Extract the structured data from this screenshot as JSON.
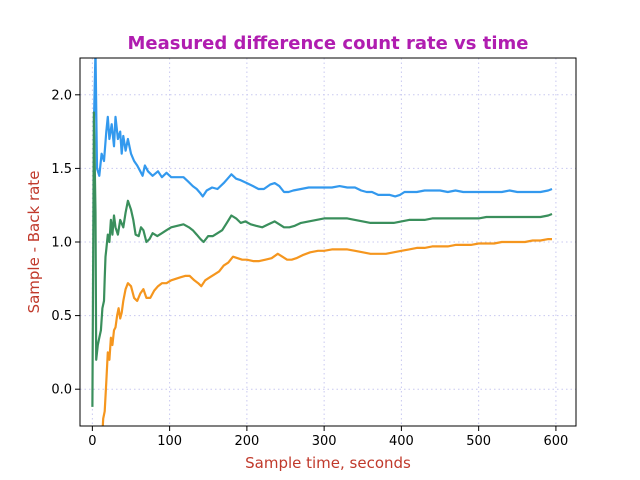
{
  "chart_data": {
    "type": "line",
    "title": "Measured difference count rate vs time",
    "xlabel": "Sample time, seconds",
    "ylabel": "Sample - Back rate",
    "xlim": [
      -16,
      626
    ],
    "ylim": [
      -0.25,
      2.25
    ],
    "xticks": [
      0,
      100,
      200,
      300,
      400,
      500,
      600
    ],
    "yticks": [
      0.0,
      0.5,
      1.0,
      1.5,
      2.0
    ],
    "xtick_labels": [
      "0",
      "100",
      "200",
      "300",
      "400",
      "500",
      "600"
    ],
    "ytick_labels": [
      "0.0",
      "0.5",
      "1.0",
      "1.5",
      "2.0"
    ],
    "grid": true,
    "legend": "none",
    "colors": {
      "title": "#b01db0",
      "axis_label": "#c0392b",
      "grid": "#c8c8f0"
    },
    "series": [
      {
        "color": "#3399ee",
        "points": [
          [
            2,
            1.8
          ],
          [
            4,
            2.3
          ],
          [
            6,
            1.5
          ],
          [
            9,
            1.45
          ],
          [
            12,
            1.6
          ],
          [
            15,
            1.55
          ],
          [
            18,
            1.75
          ],
          [
            20,
            1.85
          ],
          [
            22,
            1.7
          ],
          [
            25,
            1.8
          ],
          [
            28,
            1.65
          ],
          [
            30,
            1.85
          ],
          [
            33,
            1.7
          ],
          [
            36,
            1.75
          ],
          [
            38,
            1.6
          ],
          [
            40,
            1.72
          ],
          [
            43,
            1.62
          ],
          [
            46,
            1.7
          ],
          [
            50,
            1.6
          ],
          [
            54,
            1.55
          ],
          [
            58,
            1.52
          ],
          [
            62,
            1.48
          ],
          [
            65,
            1.45
          ],
          [
            68,
            1.52
          ],
          [
            72,
            1.48
          ],
          [
            78,
            1.45
          ],
          [
            85,
            1.48
          ],
          [
            90,
            1.44
          ],
          [
            96,
            1.47
          ],
          [
            102,
            1.44
          ],
          [
            110,
            1.44
          ],
          [
            118,
            1.44
          ],
          [
            124,
            1.41
          ],
          [
            130,
            1.38
          ],
          [
            135,
            1.36
          ],
          [
            140,
            1.33
          ],
          [
            143,
            1.31
          ],
          [
            148,
            1.35
          ],
          [
            155,
            1.37
          ],
          [
            162,
            1.36
          ],
          [
            170,
            1.4
          ],
          [
            175,
            1.43
          ],
          [
            180,
            1.46
          ],
          [
            186,
            1.43
          ],
          [
            192,
            1.42
          ],
          [
            200,
            1.4
          ],
          [
            208,
            1.38
          ],
          [
            215,
            1.36
          ],
          [
            222,
            1.36
          ],
          [
            230,
            1.39
          ],
          [
            236,
            1.4
          ],
          [
            242,
            1.38
          ],
          [
            248,
            1.34
          ],
          [
            254,
            1.34
          ],
          [
            260,
            1.35
          ],
          [
            270,
            1.36
          ],
          [
            280,
            1.37
          ],
          [
            290,
            1.37
          ],
          [
            300,
            1.37
          ],
          [
            310,
            1.37
          ],
          [
            320,
            1.38
          ],
          [
            330,
            1.37
          ],
          [
            340,
            1.37
          ],
          [
            348,
            1.35
          ],
          [
            355,
            1.34
          ],
          [
            362,
            1.34
          ],
          [
            370,
            1.32
          ],
          [
            378,
            1.32
          ],
          [
            385,
            1.32
          ],
          [
            392,
            1.31
          ],
          [
            398,
            1.32
          ],
          [
            404,
            1.34
          ],
          [
            410,
            1.34
          ],
          [
            420,
            1.34
          ],
          [
            430,
            1.35
          ],
          [
            440,
            1.35
          ],
          [
            450,
            1.35
          ],
          [
            460,
            1.34
          ],
          [
            470,
            1.35
          ],
          [
            480,
            1.34
          ],
          [
            490,
            1.34
          ],
          [
            500,
            1.34
          ],
          [
            510,
            1.34
          ],
          [
            520,
            1.34
          ],
          [
            530,
            1.34
          ],
          [
            540,
            1.35
          ],
          [
            550,
            1.34
          ],
          [
            560,
            1.34
          ],
          [
            570,
            1.34
          ],
          [
            580,
            1.34
          ],
          [
            590,
            1.35
          ],
          [
            595,
            1.36
          ]
        ]
      },
      {
        "color": "#3a8f5c",
        "points": [
          [
            0,
            -0.12
          ],
          [
            2,
            1.88
          ],
          [
            4,
            1.2
          ],
          [
            5,
            0.2
          ],
          [
            7,
            0.3
          ],
          [
            9,
            0.35
          ],
          [
            11,
            0.4
          ],
          [
            13,
            0.55
          ],
          [
            15,
            0.6
          ],
          [
            16,
            0.75
          ],
          [
            17,
            0.9
          ],
          [
            18,
            0.95
          ],
          [
            20,
            1.05
          ],
          [
            22,
            1.0
          ],
          [
            24,
            1.15
          ],
          [
            26,
            1.05
          ],
          [
            28,
            1.18
          ],
          [
            30,
            1.1
          ],
          [
            33,
            1.05
          ],
          [
            36,
            1.15
          ],
          [
            40,
            1.1
          ],
          [
            43,
            1.2
          ],
          [
            46,
            1.28
          ],
          [
            50,
            1.22
          ],
          [
            53,
            1.15
          ],
          [
            56,
            1.05
          ],
          [
            60,
            1.04
          ],
          [
            63,
            1.1
          ],
          [
            66,
            1.08
          ],
          [
            70,
            1.0
          ],
          [
            74,
            1.02
          ],
          [
            78,
            1.06
          ],
          [
            84,
            1.04
          ],
          [
            90,
            1.06
          ],
          [
            96,
            1.08
          ],
          [
            102,
            1.1
          ],
          [
            110,
            1.11
          ],
          [
            118,
            1.12
          ],
          [
            125,
            1.1
          ],
          [
            130,
            1.08
          ],
          [
            135,
            1.05
          ],
          [
            140,
            1.02
          ],
          [
            144,
            1.0
          ],
          [
            150,
            1.04
          ],
          [
            156,
            1.04
          ],
          [
            162,
            1.06
          ],
          [
            168,
            1.08
          ],
          [
            174,
            1.13
          ],
          [
            180,
            1.18
          ],
          [
            186,
            1.16
          ],
          [
            192,
            1.13
          ],
          [
            198,
            1.14
          ],
          [
            205,
            1.12
          ],
          [
            212,
            1.11
          ],
          [
            220,
            1.1
          ],
          [
            228,
            1.12
          ],
          [
            236,
            1.14
          ],
          [
            242,
            1.12
          ],
          [
            248,
            1.1
          ],
          [
            255,
            1.1
          ],
          [
            262,
            1.11
          ],
          [
            270,
            1.13
          ],
          [
            280,
            1.14
          ],
          [
            290,
            1.15
          ],
          [
            300,
            1.16
          ],
          [
            310,
            1.16
          ],
          [
            320,
            1.16
          ],
          [
            330,
            1.16
          ],
          [
            340,
            1.15
          ],
          [
            350,
            1.14
          ],
          [
            360,
            1.13
          ],
          [
            370,
            1.13
          ],
          [
            380,
            1.13
          ],
          [
            390,
            1.13
          ],
          [
            400,
            1.14
          ],
          [
            410,
            1.15
          ],
          [
            420,
            1.15
          ],
          [
            430,
            1.15
          ],
          [
            440,
            1.16
          ],
          [
            450,
            1.16
          ],
          [
            460,
            1.16
          ],
          [
            470,
            1.16
          ],
          [
            480,
            1.16
          ],
          [
            490,
            1.16
          ],
          [
            500,
            1.16
          ],
          [
            510,
            1.17
          ],
          [
            520,
            1.17
          ],
          [
            530,
            1.17
          ],
          [
            540,
            1.17
          ],
          [
            550,
            1.17
          ],
          [
            560,
            1.17
          ],
          [
            570,
            1.17
          ],
          [
            580,
            1.17
          ],
          [
            590,
            1.18
          ],
          [
            595,
            1.19
          ]
        ]
      },
      {
        "color": "#f5961e",
        "points": [
          [
            12,
            -0.4
          ],
          [
            14,
            -0.2
          ],
          [
            16,
            -0.15
          ],
          [
            18,
            0.05
          ],
          [
            20,
            0.25
          ],
          [
            22,
            0.2
          ],
          [
            24,
            0.35
          ],
          [
            26,
            0.3
          ],
          [
            28,
            0.4
          ],
          [
            30,
            0.42
          ],
          [
            32,
            0.5
          ],
          [
            34,
            0.55
          ],
          [
            36,
            0.48
          ],
          [
            38,
            0.52
          ],
          [
            40,
            0.6
          ],
          [
            43,
            0.68
          ],
          [
            46,
            0.72
          ],
          [
            50,
            0.7
          ],
          [
            54,
            0.62
          ],
          [
            58,
            0.6
          ],
          [
            62,
            0.65
          ],
          [
            66,
            0.68
          ],
          [
            70,
            0.62
          ],
          [
            75,
            0.62
          ],
          [
            80,
            0.67
          ],
          [
            85,
            0.7
          ],
          [
            90,
            0.72
          ],
          [
            96,
            0.72
          ],
          [
            102,
            0.74
          ],
          [
            108,
            0.75
          ],
          [
            114,
            0.76
          ],
          [
            120,
            0.77
          ],
          [
            126,
            0.77
          ],
          [
            132,
            0.74
          ],
          [
            137,
            0.72
          ],
          [
            141,
            0.7
          ],
          [
            146,
            0.74
          ],
          [
            152,
            0.76
          ],
          [
            158,
            0.78
          ],
          [
            164,
            0.8
          ],
          [
            170,
            0.84
          ],
          [
            176,
            0.86
          ],
          [
            182,
            0.9
          ],
          [
            188,
            0.89
          ],
          [
            194,
            0.88
          ],
          [
            200,
            0.88
          ],
          [
            208,
            0.87
          ],
          [
            216,
            0.87
          ],
          [
            224,
            0.88
          ],
          [
            232,
            0.89
          ],
          [
            240,
            0.92
          ],
          [
            246,
            0.9
          ],
          [
            252,
            0.88
          ],
          [
            258,
            0.88
          ],
          [
            264,
            0.89
          ],
          [
            272,
            0.91
          ],
          [
            282,
            0.93
          ],
          [
            292,
            0.94
          ],
          [
            300,
            0.94
          ],
          [
            310,
            0.95
          ],
          [
            320,
            0.95
          ],
          [
            330,
            0.95
          ],
          [
            340,
            0.94
          ],
          [
            350,
            0.93
          ],
          [
            360,
            0.92
          ],
          [
            370,
            0.92
          ],
          [
            380,
            0.92
          ],
          [
            390,
            0.93
          ],
          [
            400,
            0.94
          ],
          [
            410,
            0.95
          ],
          [
            420,
            0.96
          ],
          [
            430,
            0.96
          ],
          [
            440,
            0.97
          ],
          [
            450,
            0.97
          ],
          [
            460,
            0.97
          ],
          [
            470,
            0.98
          ],
          [
            480,
            0.98
          ],
          [
            490,
            0.98
          ],
          [
            500,
            0.99
          ],
          [
            510,
            0.99
          ],
          [
            520,
            0.99
          ],
          [
            530,
            1.0
          ],
          [
            540,
            1.0
          ],
          [
            550,
            1.0
          ],
          [
            560,
            1.0
          ],
          [
            570,
            1.01
          ],
          [
            580,
            1.01
          ],
          [
            590,
            1.02
          ],
          [
            595,
            1.02
          ]
        ]
      }
    ]
  }
}
